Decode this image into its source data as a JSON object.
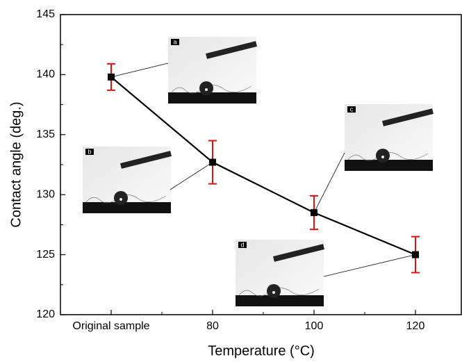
{
  "chart_data": {
    "type": "line",
    "x_label": "Temperature (°C)",
    "y_label": "Contact angle (deg.)",
    "categories": [
      "Original sample",
      "80",
      "100",
      "120"
    ],
    "series": [
      {
        "color": "#000000",
        "error_color": "#e01010",
        "values": [
          139.8,
          132.7,
          128.5,
          125.0
        ],
        "errors": [
          1.1,
          1.8,
          1.4,
          1.5
        ]
      }
    ],
    "ylim": [
      120,
      145
    ],
    "yticks": [
      120,
      125,
      130,
      135,
      140,
      145
    ],
    "inset_labels": [
      "a",
      "b",
      "c",
      "d"
    ]
  }
}
